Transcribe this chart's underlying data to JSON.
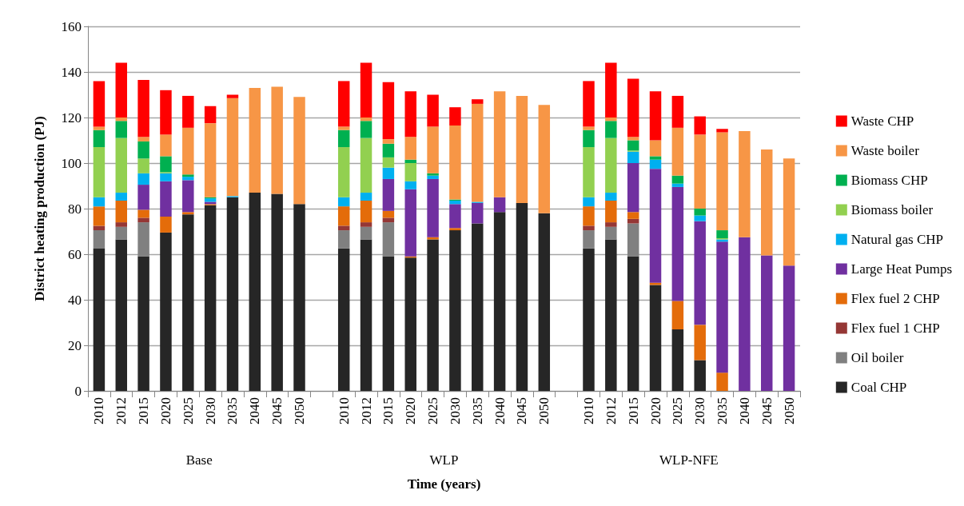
{
  "chart_data": {
    "type": "bar",
    "stacked": true,
    "xlabel": "Time (years)",
    "ylabel": "District heating production (PJ)",
    "categories": [
      "2010",
      "2012",
      "2015",
      "2020",
      "2025",
      "2030",
      "2035",
      "2040",
      "2045",
      "2050",
      null,
      "2010",
      "2012",
      "2015",
      "2020",
      "2025",
      "2030",
      "2035",
      "2040",
      "2045",
      "2050",
      null,
      "2010",
      "2012",
      "2015",
      "2020",
      "2025",
      "2030",
      "2035",
      "2040",
      "2045",
      "2050"
    ],
    "annotations": [
      "Base",
      "WLP",
      "WLP-NFE"
    ],
    "ylim": [
      0,
      160
    ],
    "yticks": [
      0,
      20,
      40,
      60,
      80,
      100,
      120,
      140,
      160
    ],
    "grid": "y",
    "legend": "right",
    "series": [
      {
        "name": "Coal CHP",
        "color": "#262626",
        "values": [
          62.5,
          66.5,
          59,
          69.5,
          77.5,
          81.5,
          85,
          87,
          86.5,
          82,
          null,
          62.5,
          66.5,
          59,
          58.5,
          66.5,
          70.5,
          73.5,
          78.5,
          82.5,
          78,
          null,
          62.5,
          66.5,
          59,
          46.5,
          27,
          13.5,
          0,
          0,
          0,
          0
        ]
      },
      {
        "name": "Oil boiler",
        "color": "#808080",
        "values": [
          8,
          5.5,
          15,
          0,
          0,
          0,
          0,
          0,
          0,
          0,
          null,
          8,
          5.5,
          15,
          0,
          0,
          0,
          0,
          0,
          0,
          0,
          null,
          8,
          5.5,
          14.5,
          0,
          0,
          0,
          0,
          0,
          0,
          0
        ]
      },
      {
        "name": "Flex fuel 1 CHP",
        "color": "#953735",
        "values": [
          2,
          2,
          2,
          0,
          0,
          0,
          0,
          0,
          0,
          0,
          null,
          2,
          2,
          2,
          0,
          0,
          0,
          0,
          0,
          0,
          0,
          null,
          2,
          2,
          2,
          0,
          0,
          0,
          0,
          0,
          0,
          0
        ]
      },
      {
        "name": "Flex fuel 2 CHP",
        "color": "#e46c0a",
        "values": [
          8.5,
          9.5,
          3.5,
          7,
          1,
          0.5,
          0,
          0,
          0,
          0,
          null,
          8.5,
          9.5,
          3,
          0.5,
          1,
          1,
          0,
          0,
          0,
          0,
          null,
          8.5,
          9.5,
          3,
          1,
          12.5,
          15.5,
          8,
          0,
          0,
          0
        ]
      },
      {
        "name": "Large Heat Pumps",
        "color": "#7030a0",
        "values": [
          0,
          0,
          11,
          15.5,
          14,
          1,
          0,
          0,
          0,
          0,
          null,
          0,
          0,
          14,
          29.5,
          25.5,
          10.5,
          9,
          6.5,
          0,
          0,
          null,
          0,
          0,
          21.5,
          50,
          50,
          45.5,
          57.5,
          67.5,
          59.5,
          55
        ]
      },
      {
        "name": "Natural gas CHP",
        "color": "#00b0f0",
        "values": [
          4,
          3.5,
          5,
          3.5,
          1.5,
          1.5,
          0.5,
          0,
          0,
          0,
          null,
          4,
          3.5,
          5,
          3.5,
          1.5,
          1.5,
          0.5,
          0,
          0,
          0,
          null,
          4,
          3.5,
          5,
          4,
          1.5,
          2.5,
          1,
          0,
          0,
          0
        ]
      },
      {
        "name": "Biomass boiler",
        "color": "#92d050",
        "values": [
          22,
          24,
          6.5,
          0.5,
          0,
          0,
          0,
          0,
          0,
          0,
          null,
          22,
          24,
          4.5,
          8,
          0,
          0,
          0,
          0,
          0,
          0,
          null,
          22,
          24,
          0.5,
          0,
          0,
          0,
          0.5,
          0,
          0,
          0
        ]
      },
      {
        "name": "Biomass CHP",
        "color": "#00b050",
        "values": [
          7.5,
          7.5,
          7.5,
          7,
          1,
          0.5,
          0,
          0,
          0,
          0,
          null,
          7.5,
          7.5,
          6,
          1.5,
          1,
          0.5,
          0,
          0,
          0,
          0,
          null,
          7.5,
          7.5,
          4.5,
          1.5,
          3.5,
          3,
          3.5,
          0,
          0,
          0
        ]
      },
      {
        "name": "Waste boiler",
        "color": "#f79646",
        "values": [
          1.5,
          1.5,
          2,
          9.5,
          20.5,
          32.5,
          43,
          46,
          47,
          47,
          null,
          1.5,
          1.5,
          2,
          10,
          20.5,
          32.5,
          43,
          46.5,
          47,
          47.5,
          null,
          1.5,
          1.5,
          1.5,
          7,
          21,
          32.5,
          43,
          46.5,
          46.5,
          47
        ]
      },
      {
        "name": "Waste CHP",
        "color": "#ff0000",
        "values": [
          20,
          24,
          25,
          19.5,
          14,
          7.5,
          1.5,
          0,
          0,
          0,
          null,
          20,
          24,
          25,
          20,
          14,
          8,
          2,
          0,
          0,
          0,
          null,
          20,
          24,
          25.5,
          21.5,
          14,
          8,
          1.5,
          0,
          0,
          0
        ]
      }
    ]
  }
}
